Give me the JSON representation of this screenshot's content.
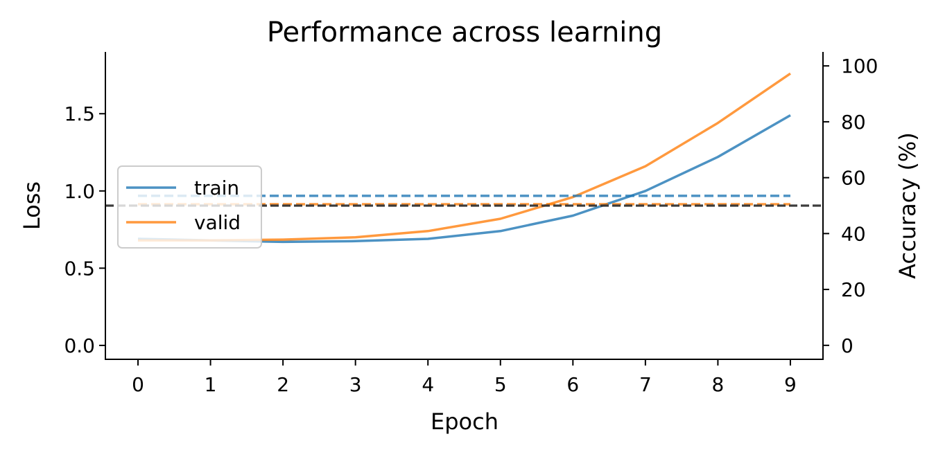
{
  "chart_data": {
    "type": "line",
    "title": "Performance across learning",
    "xlabel": "Epoch",
    "ylabel": "Loss",
    "y2label": "Accuracy (%)",
    "x": [
      0,
      1,
      2,
      3,
      4,
      5,
      6,
      7,
      8,
      9
    ],
    "xticks": [
      "0",
      "1",
      "2",
      "3",
      "4",
      "5",
      "6",
      "7",
      "8",
      "9"
    ],
    "xlim": [
      -0.45,
      9.45
    ],
    "ylim": [
      -0.09,
      1.9
    ],
    "yticks": [
      "0.0",
      "0.5",
      "1.0",
      "1.5"
    ],
    "y2lim": [
      -5,
      105
    ],
    "y2ticks": [
      "0",
      "20",
      "40",
      "60",
      "80",
      "100"
    ],
    "grid": false,
    "legend": {
      "position": "center-left"
    },
    "series": [
      {
        "name": "train",
        "axis": "left",
        "style": "solid",
        "color": "#1f77b4",
        "values": [
          0.69,
          0.68,
          0.67,
          0.675,
          0.69,
          0.74,
          0.84,
          1.0,
          1.22,
          1.49
        ]
      },
      {
        "name": "valid",
        "axis": "left",
        "style": "solid",
        "color": "#ff7f0e",
        "values": [
          0.68,
          0.68,
          0.685,
          0.7,
          0.74,
          0.82,
          0.96,
          1.16,
          1.44,
          1.76
        ]
      },
      {
        "axis": "right",
        "style": "dashed",
        "color": "#1f77b4",
        "values": [
          53.5,
          53.5,
          53.5,
          53.5,
          53.5,
          53.5,
          53.5,
          53.5,
          53.5,
          53.5
        ]
      },
      {
        "axis": "right",
        "style": "dashed",
        "color": "#ff7f0e",
        "values": [
          50.5,
          50.5,
          50.5,
          50.5,
          50.5,
          50.5,
          50.5,
          50.5,
          50.5,
          50.5
        ]
      }
    ],
    "reference_line": {
      "axis": "right",
      "value": 50,
      "style": "dashed",
      "color": "#333333"
    }
  }
}
